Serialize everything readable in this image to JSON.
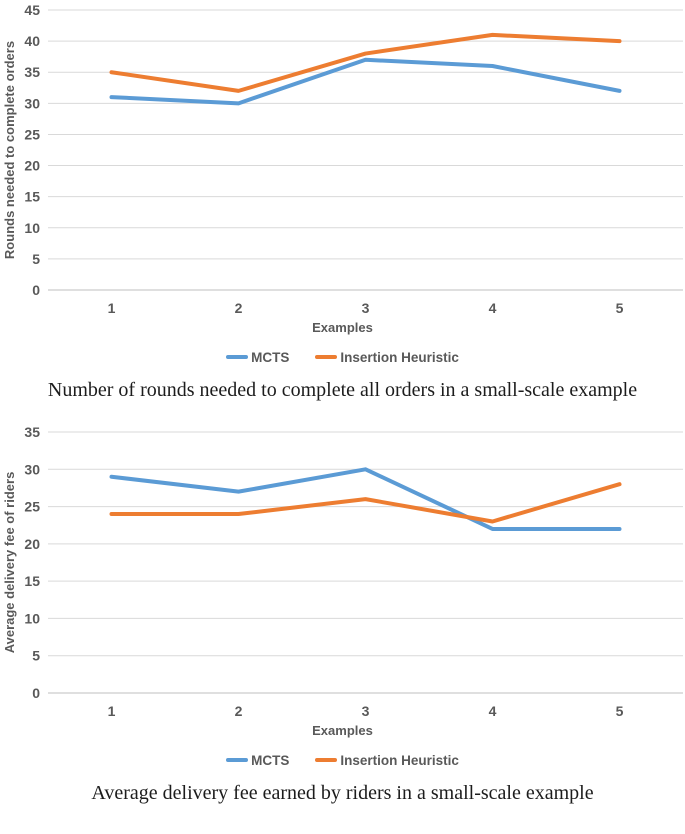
{
  "colors": {
    "mcts_blue": "#5B9BD5",
    "insertion_orange": "#ED7D31",
    "gridline": "#D9D9D9",
    "axis_line": "#BFBFBF",
    "axis_text": "#595959",
    "caption_text": "#1c1c1c"
  },
  "chart_data": [
    {
      "type": "line",
      "categories": [
        "1",
        "2",
        "3",
        "4",
        "5"
      ],
      "series": [
        {
          "name": "MCTS",
          "color": "#5B9BD5",
          "values": [
            31,
            30,
            37,
            36,
            32
          ]
        },
        {
          "name": "Insertion Heuristic",
          "color": "#ED7D31",
          "values": [
            35,
            32,
            38,
            41,
            40
          ]
        }
      ],
      "title": "",
      "xlabel": "Examples",
      "ylabel": "Rounds needed to complete orders",
      "ylim": [
        0,
        45
      ],
      "ytick_step": 5,
      "grid": true,
      "legend_position": "bottom",
      "caption": "Number of rounds needed to complete all orders in a small-scale example"
    },
    {
      "type": "line",
      "categories": [
        "1",
        "2",
        "3",
        "4",
        "5"
      ],
      "series": [
        {
          "name": "MCTS",
          "color": "#5B9BD5",
          "values": [
            29,
            27,
            30,
            22,
            22
          ]
        },
        {
          "name": "Insertion Heuristic",
          "color": "#ED7D31",
          "values": [
            24,
            24,
            26,
            23,
            28
          ]
        }
      ],
      "title": "",
      "xlabel": "Examples",
      "ylabel": "Average delivery fee of riders",
      "ylim": [
        0,
        35
      ],
      "ytick_step": 5,
      "grid": true,
      "legend_position": "bottom",
      "caption": "Average delivery fee earned by riders in a small-scale example"
    }
  ]
}
